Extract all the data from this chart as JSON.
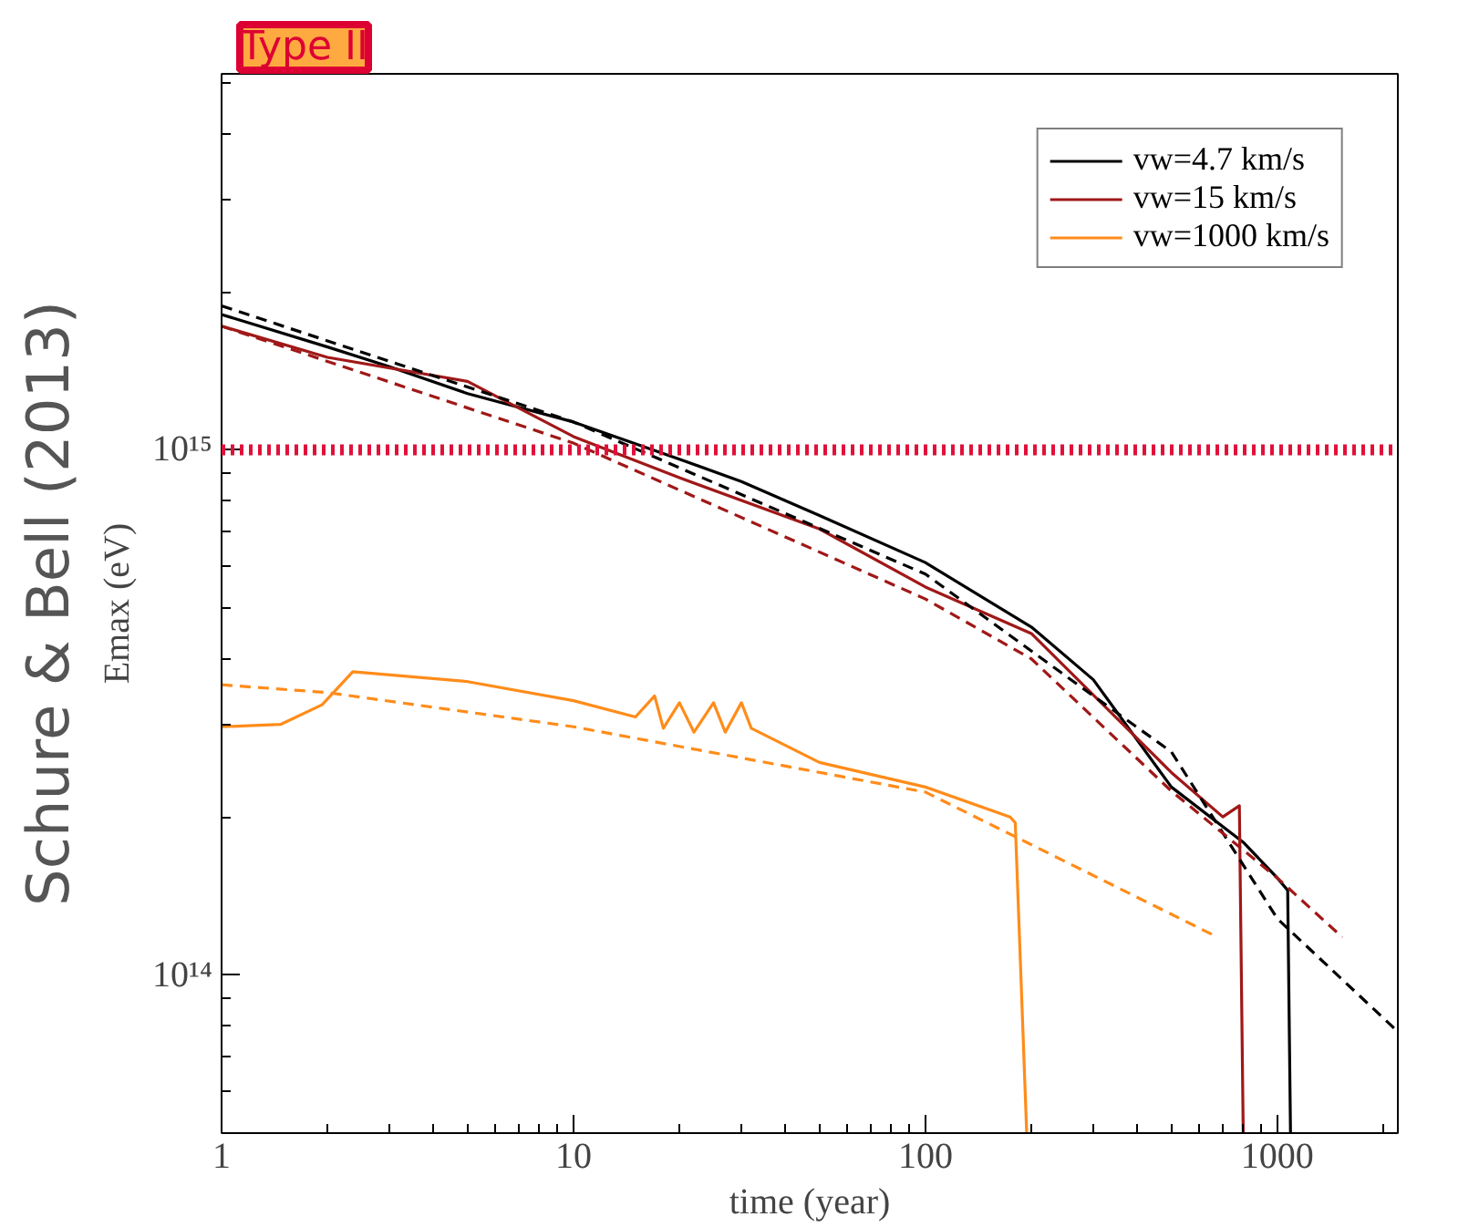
{
  "chart_data": {
    "type": "line",
    "xlabel": "time (year)",
    "ylabel": "Emax (eV)",
    "log": "xy",
    "grid": false,
    "legend": "top right",
    "marker": "none",
    "xlim": [
      1,
      2200
    ],
    "ylim": [
      50000000000000.0,
      5200000000000000.0
    ],
    "xticks": [
      1,
      10,
      100,
      1000
    ],
    "yticks": [
      {
        "value": 100000000000000.0,
        "label": "10¹⁴"
      },
      {
        "value": 1000000000000000.0,
        "label": "10¹⁵"
      }
    ],
    "annotations": [
      "Type II",
      "Schure & Bell (2013)"
    ],
    "ref_lines": [
      {
        "axis": "y",
        "value": 1000000000000000.0,
        "color": "#e0103a",
        "line_style": "dotted"
      }
    ],
    "series": [
      {
        "name": "vw=4.7 km/s",
        "color": "#000000",
        "line_style": "solid",
        "x": [
          1,
          2,
          3,
          5,
          10,
          20,
          30,
          50,
          100,
          200,
          300,
          500,
          800,
          1000,
          1070,
          1090
        ],
        "values": [
          1810000000000000.0,
          1570000000000000.0,
          1440000000000000.0,
          1280000000000000.0,
          1130000000000000.0,
          960000000000000.0,
          870000000000000.0,
          750000000000000.0,
          610000000000000.0,
          460000000000000.0,
          365000000000000.0,
          228000000000000.0,
          179000000000000.0,
          153000000000000.0,
          145000000000000.0,
          50000000000000.0
        ]
      },
      {
        "name": "vw=15 km/s",
        "color": "#a01818",
        "line_style": "solid",
        "x": [
          1,
          2,
          5,
          10,
          20,
          50,
          100,
          200,
          500,
          700,
          780,
          800
        ],
        "values": [
          1720000000000000.0,
          1500000000000000.0,
          1350000000000000.0,
          1060000000000000.0,
          885000000000000.0,
          707000000000000.0,
          548000000000000.0,
          447000000000000.0,
          243000000000000.0,
          200000000000000.0,
          210000000000000.0,
          50000000000000.0
        ]
      },
      {
        "name": "vw=1000 km/s",
        "color": "#ff8c1a",
        "line_style": "solid",
        "x": [
          1,
          1.47,
          1.93,
          2.36,
          5,
          10,
          15,
          17,
          18,
          20,
          22,
          25,
          27,
          30,
          32,
          50,
          100,
          174,
          180,
          194
        ],
        "values": [
          297000000000000.0,
          300000000000000.0,
          327000000000000.0,
          378000000000000.0,
          362000000000000.0,
          333000000000000.0,
          310000000000000.0,
          340000000000000.0,
          295000000000000.0,
          330000000000000.0,
          290000000000000.0,
          330000000000000.0,
          290000000000000.0,
          330000000000000.0,
          295000000000000.0,
          254000000000000.0,
          228000000000000.0,
          200000000000000.0,
          195000000000000.0,
          50000000000000.0
        ]
      },
      {
        "color": "#000000",
        "line_style": "dashed",
        "x": [
          1,
          10,
          100,
          300,
          500,
          1000,
          2200
        ],
        "values": [
          1880000000000000.0,
          1130000000000000.0,
          580000000000000.0,
          340000000000000.0,
          266000000000000.0,
          128000000000000.0,
          78000000000000.0
        ]
      },
      {
        "color": "#a01818",
        "line_style": "dashed",
        "x": [
          1,
          10,
          100,
          200,
          500,
          1000,
          1530
        ],
        "values": [
          1720000000000000.0,
          1030000000000000.0,
          520000000000000.0,
          400000000000000.0,
          224000000000000.0,
          153000000000000.0,
          118000000000000.0
        ]
      },
      {
        "color": "#ff8c1a",
        "line_style": "dashed",
        "x": [
          1,
          2,
          10,
          100,
          660
        ],
        "values": [
          357000000000000.0,
          345000000000000.0,
          297000000000000.0,
          223000000000000.0,
          119000000000000.0
        ]
      }
    ]
  }
}
